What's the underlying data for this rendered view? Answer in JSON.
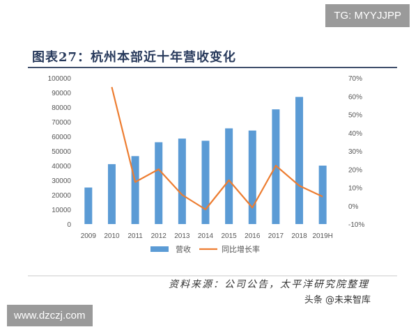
{
  "badges": {
    "telegram": "TG: MYYJJPP",
    "website": "www.dzczj.com"
  },
  "figure": {
    "title": "图表27：杭州本部近十年营收变化",
    "source": "资料来源：公司公告，太平洋研究院整理",
    "brand": "头条 @未来智库"
  },
  "chart_data": {
    "type": "bar",
    "categories": [
      "2009",
      "2010",
      "2011",
      "2012",
      "2013",
      "2014",
      "2015",
      "2016",
      "2017",
      "2018",
      "2019H"
    ],
    "series": [
      {
        "name": "营收",
        "type": "bar",
        "axis": "left",
        "color": "#5b9bd5",
        "values": [
          25000,
          41000,
          46500,
          56000,
          58500,
          57000,
          65500,
          64000,
          78500,
          87000,
          40000
        ]
      },
      {
        "name": "同比增长率",
        "type": "line",
        "axis": "right",
        "color": "#ed7d31",
        "values": [
          null,
          0.65,
          0.13,
          0.2,
          0.06,
          -0.02,
          0.14,
          -0.01,
          0.22,
          0.11,
          0.05
        ]
      }
    ],
    "yticks_left": [
      "0",
      "10000",
      "20000",
      "30000",
      "40000",
      "50000",
      "60000",
      "70000",
      "80000",
      "90000",
      "100000"
    ],
    "ylim_left": [
      0,
      100000
    ],
    "yticks_right": [
      "-10%",
      "0%",
      "10%",
      "20%",
      "30%",
      "40%",
      "50%",
      "60%",
      "70%"
    ],
    "ylim_right": [
      -0.1,
      0.7
    ],
    "grid": false,
    "legend_position": "bottom"
  }
}
